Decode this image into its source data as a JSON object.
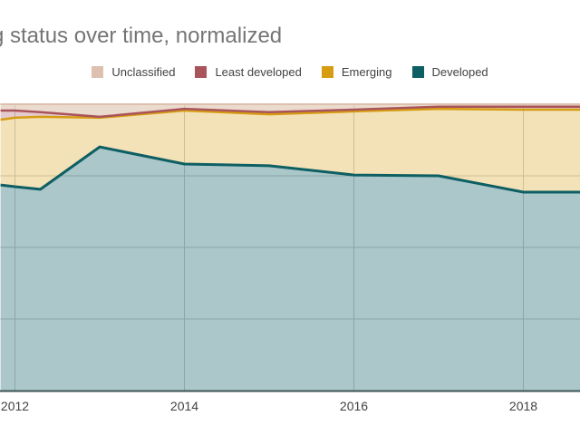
{
  "header": {
    "title": "g status over time, normalized"
  },
  "legend": {
    "position": "top",
    "items": [
      {
        "label": "Unclassified",
        "color": "#ddc1ae"
      },
      {
        "label": "Least developed",
        "color": "#a9545a"
      },
      {
        "label": "Emerging",
        "color": "#d69c12"
      },
      {
        "label": "Developed",
        "color": "#0d5f63"
      }
    ]
  },
  "axis": {
    "x_labels": [
      "2012",
      "2014",
      "2016",
      "2018"
    ],
    "label_color": "#424242",
    "gridline_color": "#cccccc",
    "baseline_color": "#3d5456"
  },
  "chart_data": {
    "type": "area",
    "stacked": true,
    "normalized": true,
    "title": "g status over time, normalized",
    "xlabel": "",
    "ylabel": "",
    "ylim": [
      0,
      100
    ],
    "grid": true,
    "legend_position": "top",
    "x": [
      2011.83,
      2012,
      2012.3,
      2013,
      2014,
      2015,
      2016,
      2017,
      2018,
      2018.68
    ],
    "x_ticks": [
      2012,
      2014,
      2016,
      2018
    ],
    "series": [
      {
        "name": "Developed",
        "line_color": "#0d5f63",
        "fill_color": "rgba(13,95,99,0.35)",
        "line_width": 3,
        "values": [
          71.8,
          71.2,
          70.3,
          85.1,
          79.1,
          78.5,
          75.3,
          75.0,
          69.3,
          69.3
        ]
      },
      {
        "name": "Emerging",
        "line_color": "#d69c12",
        "fill_color": "rgba(214,156,18,0.30)",
        "line_width": 2.5,
        "values": [
          22.8,
          24.1,
          25.3,
          10.2,
          18.7,
          18.0,
          22.2,
          23.4,
          28.8,
          28.8
        ]
      },
      {
        "name": "Least developed",
        "line_color": "#a9545a",
        "fill_color": "rgba(169,84,90,0.30)",
        "line_width": 2.5,
        "values": [
          3.2,
          2.5,
          1.6,
          0.3,
          0.6,
          0.7,
          0.6,
          0.7,
          1.0,
          1.0
        ]
      },
      {
        "name": "Unclassified",
        "line_color": "#ddc1ae",
        "fill_color": "rgba(221,193,174,0.60)",
        "line_width": 2,
        "values": [
          2.2,
          2.2,
          2.8,
          4.4,
          1.6,
          2.8,
          1.9,
          0.9,
          0.9,
          0.9
        ]
      }
    ]
  }
}
